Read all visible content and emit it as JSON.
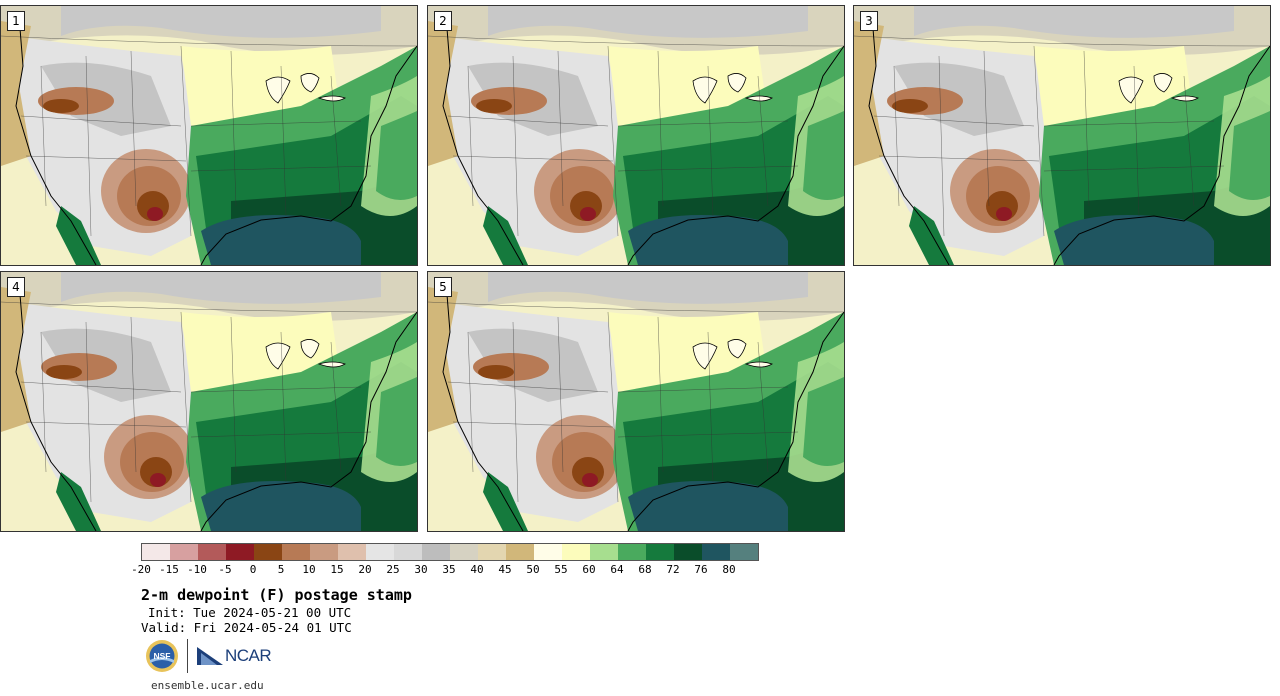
{
  "panels": [
    {
      "label": "1"
    },
    {
      "label": "2"
    },
    {
      "label": "3"
    },
    {
      "label": "4"
    },
    {
      "label": "5"
    }
  ],
  "colorbar": {
    "colors": [
      "#f4e8e8",
      "#d7a0a0",
      "#b35a5a",
      "#8e1a24",
      "#8a4514",
      "#b77a55",
      "#c99b81",
      "#dfc0ad",
      "#e5e5e5",
      "#d8d8d8",
      "#bdbdbd",
      "#d6d2c2",
      "#e3d6b0",
      "#d1b77a",
      "#fffde8",
      "#fcfcbc",
      "#a7de8f",
      "#4aaa5e",
      "#157a3d",
      "#0a4d2a",
      "#1f5560",
      "#55807e"
    ],
    "ticks": [
      "-20",
      "-15",
      "-10",
      "-5",
      "0",
      "5",
      "10",
      "15",
      "20",
      "25",
      "30",
      "35",
      "40",
      "45",
      "50",
      "55",
      "60",
      "64",
      "68",
      "72",
      "76",
      "80"
    ]
  },
  "title": "2-m dewpoint (F) postage stamp",
  "init": "Init: Tue 2024-05-21 00 UTC",
  "valid": "Valid: Fri 2024-05-24 01 UTC",
  "logos": {
    "nsf": "NSF",
    "ncar": "NCAR"
  },
  "footer": "ensemble.ucar.edu",
  "colors": {
    "ocean_gulf": "#1f5560",
    "dark_green": "#0a4d2a",
    "green": "#157a3d",
    "mid_green": "#4aaa5e",
    "light_green": "#a7de8f",
    "pale_yellow": "#fcfcbc",
    "tan": "#d1b77a",
    "gray": "#bdbdbd",
    "brown": "#b77a55",
    "maroon": "#8e1a24"
  }
}
